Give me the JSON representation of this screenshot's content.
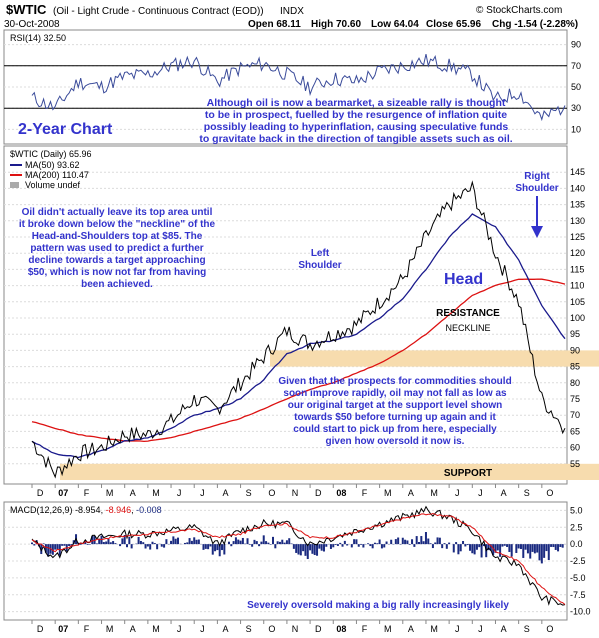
{
  "header": {
    "symbol": "$WTIC",
    "description": "(Oil - Light Crude - Continuous Contract (EOD))",
    "exchange": "INDX",
    "date": "30-Oct-2008",
    "open": "Open 68.11",
    "high": "High 70.60",
    "low": "Low 64.04",
    "close": "Close 65.96",
    "chg": "Chg -1.54 (-2.28%)",
    "brand": "© StockCharts.com"
  },
  "rsi_panel": {
    "legend": "RSI(14) 32.50",
    "ticks": [
      "90",
      "70",
      "50",
      "30",
      "10"
    ]
  },
  "price_panel": {
    "legend_main": "$WTIC (Daily) 65.96",
    "legend_ma50": "MA(50) 93.62",
    "legend_ma200": "MA(200) 110.47",
    "legend_vol": "Volume undef",
    "ticks": [
      "145",
      "140",
      "135",
      "130",
      "125",
      "120",
      "115",
      "110",
      "105",
      "100",
      "95",
      "90",
      "85",
      "80",
      "75",
      "70",
      "65",
      "60",
      "55"
    ]
  },
  "macd_panel": {
    "legend_name": "MACD(12,26,9)",
    "legend_v1": "-8.954",
    "legend_v2": "-8.946",
    "legend_v3": "-0.008",
    "ticks": [
      "5.0",
      "2.5",
      "0.0",
      "-2.5",
      "-5.0",
      "-7.5",
      "-10.0"
    ]
  },
  "x_axis": {
    "labels": [
      "D",
      "07",
      "F",
      "M",
      "A",
      "M",
      "J",
      "J",
      "A",
      "S",
      "O",
      "N",
      "D",
      "08",
      "F",
      "M",
      "A",
      "M",
      "J",
      "J",
      "A",
      "S",
      "O"
    ]
  },
  "annotations": {
    "rsi_note": [
      "Although oil is now a bearmarket, a sizeable rally is thought",
      "to be in prospect, fuelled by the resurgence of inflation quite",
      "possibly leading to hyperinflation, causing speculative funds",
      "to gravitate back in the direction of tangible assets such as oil."
    ],
    "two_year": "2-Year Chart",
    "left_note": [
      "Oil didn't actually leave its top area until",
      "it broke down below the \"neckline\" of the",
      "Head-and-Shoulders top at $85. The",
      "pattern was used to predict a further",
      "decline towards a target approaching",
      "$50, which is now not far from having",
      "been achieved."
    ],
    "left_shoulder": [
      "Left",
      "Shoulder"
    ],
    "right_shoulder": [
      "Right",
      "Shoulder"
    ],
    "head": "Head",
    "resistance": "RESISTANCE",
    "neckline": "NECKLINE",
    "support": "SUPPORT",
    "lower_note": [
      "Given that the prospects for commodities should",
      "soon improve rapidly, oil may not fall as low as",
      "our original target at the support level shown",
      "towards $50 before turning up again and it",
      "could start to pick up from here, especially",
      "given how oversold it now is."
    ],
    "macd_note": "Severely oversold making a big rally increasingly likely"
  },
  "colors": {
    "price": "#000000",
    "ma50": "#1a1a8c",
    "ma200": "#dd1111",
    "rsi": "#3a4b9a",
    "macd": "#000000",
    "signal": "#dd1111",
    "histogram": "#1a2a80",
    "zone": "#f7dcae",
    "annotation": "#3333cc"
  },
  "chart_data": {
    "type": "line",
    "x": [
      "2006-12",
      "2007-01",
      "2007-02",
      "2007-03",
      "2007-04",
      "2007-05",
      "2007-06",
      "2007-07",
      "2007-08",
      "2007-09",
      "2007-10",
      "2007-11",
      "2007-12",
      "2008-01",
      "2008-02",
      "2008-03",
      "2008-04",
      "2008-05",
      "2008-06",
      "2008-07",
      "2008-08",
      "2008-09",
      "2008-10",
      "2008-10-30"
    ],
    "series": [
      {
        "name": "$WTIC (Daily)",
        "values": [
          62,
          52,
          58,
          60,
          64,
          64,
          68,
          75,
          72,
          80,
          88,
          96,
          92,
          95,
          98,
          105,
          112,
          125,
          135,
          140,
          120,
          105,
          75,
          66
        ]
      },
      {
        "name": "MA(50)",
        "values": [
          62,
          58,
          57,
          59,
          62,
          63,
          66,
          70,
          72,
          75,
          81,
          89,
          92,
          93,
          95,
          100,
          106,
          115,
          125,
          132,
          128,
          118,
          104,
          93.62
        ]
      },
      {
        "name": "MA(200)",
        "values": [
          68,
          66,
          64,
          63,
          62,
          62,
          63,
          65,
          67,
          69,
          72,
          75,
          78,
          80,
          83,
          86,
          90,
          95,
          101,
          107,
          110,
          112,
          112,
          110.47
        ]
      }
    ],
    "rsi": {
      "name": "RSI(14)",
      "values": [
        40,
        30,
        55,
        50,
        60,
        62,
        70,
        75,
        55,
        68,
        72,
        62,
        50,
        58,
        55,
        65,
        70,
        75,
        70,
        62,
        38,
        45,
        20,
        32.5
      ],
      "ylim": [
        0,
        100
      ]
    },
    "macd": {
      "name": "MACD(12,26,9)",
      "values": [
        0.5,
        -2,
        0.5,
        1,
        1.5,
        1.5,
        2,
        2.5,
        0,
        2,
        3,
        3,
        0,
        1,
        2,
        3,
        4,
        5,
        4,
        2,
        -2,
        -3,
        -8,
        -8.954
      ],
      "signal": [
        0.5,
        -1,
        0,
        0.8,
        1.2,
        1.5,
        1.8,
        2.2,
        1,
        1.5,
        2.8,
        3,
        1,
        1,
        1.8,
        2.8,
        3.8,
        4.5,
        4.2,
        2.5,
        -1,
        -2.5,
        -6.5,
        -8.946
      ],
      "ylim": [
        -10,
        6
      ]
    },
    "resistance_band": [
      85,
      90
    ],
    "support_band": [
      50,
      55
    ],
    "ylim": [
      50,
      150
    ]
  }
}
